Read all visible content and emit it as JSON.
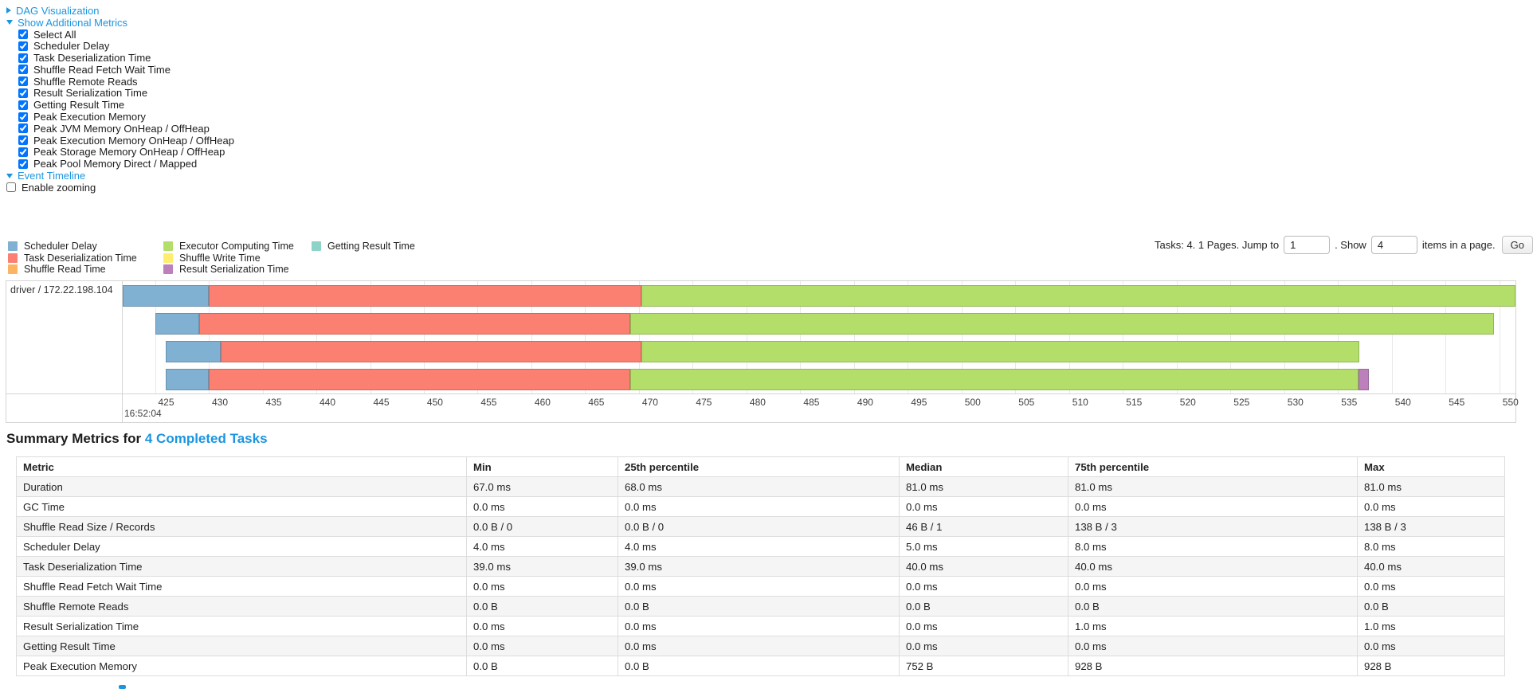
{
  "controls": {
    "dag_label": "DAG Visualization",
    "metrics_label": "Show Additional Metrics",
    "metric_items": [
      {
        "label": "Select All",
        "checked": true
      },
      {
        "label": "Scheduler Delay",
        "checked": true
      },
      {
        "label": "Task Deserialization Time",
        "checked": true
      },
      {
        "label": "Shuffle Read Fetch Wait Time",
        "checked": true
      },
      {
        "label": "Shuffle Remote Reads",
        "checked": true
      },
      {
        "label": "Result Serialization Time",
        "checked": true
      },
      {
        "label": "Getting Result Time",
        "checked": true
      },
      {
        "label": "Peak Execution Memory",
        "checked": true
      },
      {
        "label": "Peak JVM Memory OnHeap / OffHeap",
        "checked": true
      },
      {
        "label": "Peak Execution Memory OnHeap / OffHeap",
        "checked": true
      },
      {
        "label": "Peak Storage Memory OnHeap / OffHeap",
        "checked": true
      },
      {
        "label": "Peak Pool Memory Direct / Mapped",
        "checked": true
      }
    ],
    "event_timeline_label": "Event Timeline",
    "enable_zooming_label": "Enable zooming",
    "enable_zooming_checked": false
  },
  "legend": {
    "columns": [
      [
        {
          "label": "Scheduler Delay",
          "color": "#80B1D3"
        },
        {
          "label": "Task Deserialization Time",
          "color": "#FB8072"
        },
        {
          "label": "Shuffle Read Time",
          "color": "#FDB462"
        }
      ],
      [
        {
          "label": "Executor Computing Time",
          "color": "#B3DE69"
        },
        {
          "label": "Shuffle Write Time",
          "color": "#FFED6F"
        },
        {
          "label": "Result Serialization Time",
          "color": "#BC80BD"
        }
      ],
      [
        {
          "label": "Getting Result Time",
          "color": "#8DD3C7"
        }
      ]
    ]
  },
  "pagination": {
    "prefix": "Tasks: 4. 1 Pages. Jump to",
    "jump_value": "1",
    "show_label": ". Show",
    "show_value": "4",
    "suffix": "items in a page.",
    "go_label": "Go"
  },
  "chart_data": {
    "type": "timeline-gantt",
    "group_label": "driver / 172.22.198.104",
    "axis": {
      "view_min": 422.0,
      "view_max": 551.5,
      "tick_start": 425,
      "tick_end": 550,
      "tick_step": 5,
      "unit": "ms within second",
      "major_time_label": "16:52:04"
    },
    "colors": {
      "scheduler_delay": "#80B1D3",
      "task_deserialization": "#FB8072",
      "shuffle_read": "#FDB462",
      "executor_computing": "#B3DE69",
      "shuffle_write": "#FFED6F",
      "result_serialization": "#BC80BD",
      "getting_result": "#8DD3C7"
    },
    "tasks": [
      {
        "segments": [
          {
            "metric": "scheduler_delay",
            "start": 422.0,
            "end": 430.0
          },
          {
            "metric": "task_deserialization",
            "start": 430.0,
            "end": 470.2
          },
          {
            "metric": "executor_computing",
            "start": 470.2,
            "end": 551.5
          }
        ]
      },
      {
        "segments": [
          {
            "metric": "scheduler_delay",
            "start": 425.0,
            "end": 429.1
          },
          {
            "metric": "task_deserialization",
            "start": 429.1,
            "end": 469.2
          },
          {
            "metric": "executor_computing",
            "start": 469.2,
            "end": 549.5
          }
        ]
      },
      {
        "segments": [
          {
            "metric": "scheduler_delay",
            "start": 426.0,
            "end": 431.1
          },
          {
            "metric": "task_deserialization",
            "start": 431.1,
            "end": 470.2
          },
          {
            "metric": "executor_computing",
            "start": 470.2,
            "end": 537.0
          }
        ]
      },
      {
        "segments": [
          {
            "metric": "scheduler_delay",
            "start": 426.0,
            "end": 430.0
          },
          {
            "metric": "task_deserialization",
            "start": 430.0,
            "end": 469.2
          },
          {
            "metric": "executor_computing",
            "start": 469.2,
            "end": 536.9
          },
          {
            "metric": "result_serialization",
            "start": 536.9,
            "end": 537.9
          }
        ]
      }
    ]
  },
  "summary": {
    "title": "Summary Metrics for",
    "link": "4 Completed Tasks",
    "columns": [
      "Metric",
      "Min",
      "25th percentile",
      "Median",
      "75th percentile",
      "Max"
    ],
    "rows": [
      {
        "metric": "Duration",
        "values": [
          "67.0 ms",
          "68.0 ms",
          "81.0 ms",
          "81.0 ms",
          "81.0 ms"
        ]
      },
      {
        "metric": "GC Time",
        "values": [
          "0.0 ms",
          "0.0 ms",
          "0.0 ms",
          "0.0 ms",
          "0.0 ms"
        ]
      },
      {
        "metric": "Shuffle Read Size / Records",
        "values": [
          "0.0 B / 0",
          "0.0 B / 0",
          "46 B / 1",
          "138 B / 3",
          "138 B / 3"
        ]
      },
      {
        "metric": "Scheduler Delay",
        "values": [
          "4.0 ms",
          "4.0 ms",
          "5.0 ms",
          "8.0 ms",
          "8.0 ms"
        ]
      },
      {
        "metric": "Task Deserialization Time",
        "values": [
          "39.0 ms",
          "39.0 ms",
          "40.0 ms",
          "40.0 ms",
          "40.0 ms"
        ]
      },
      {
        "metric": "Shuffle Read Fetch Wait Time",
        "values": [
          "0.0 ms",
          "0.0 ms",
          "0.0 ms",
          "0.0 ms",
          "0.0 ms"
        ]
      },
      {
        "metric": "Shuffle Remote Reads",
        "values": [
          "0.0 B",
          "0.0 B",
          "0.0 B",
          "0.0 B",
          "0.0 B"
        ]
      },
      {
        "metric": "Result Serialization Time",
        "values": [
          "0.0 ms",
          "0.0 ms",
          "0.0 ms",
          "1.0 ms",
          "1.0 ms"
        ]
      },
      {
        "metric": "Getting Result Time",
        "values": [
          "0.0 ms",
          "0.0 ms",
          "0.0 ms",
          "0.0 ms",
          "0.0 ms"
        ]
      },
      {
        "metric": "Peak Execution Memory",
        "values": [
          "0.0 B",
          "0.0 B",
          "752 B",
          "928 B",
          "928 B"
        ]
      }
    ]
  }
}
